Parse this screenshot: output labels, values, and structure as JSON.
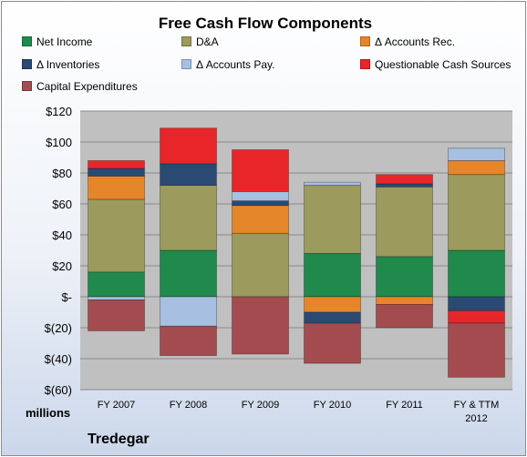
{
  "chart_data": {
    "type": "bar",
    "title": "Free Cash Flow Components",
    "categories": [
      "FY 2007",
      "FY 2008",
      "FY 2009",
      "FY 2010",
      "FY 2011",
      "FY & TTM 2012"
    ],
    "series": [
      {
        "name": "Net Income",
        "color": "#1f8a4c",
        "values": [
          16,
          30,
          0,
          28,
          26,
          30
        ]
      },
      {
        "name": "D&A",
        "color": "#9c9a5c",
        "values": [
          47,
          42,
          41,
          44,
          45,
          49
        ]
      },
      {
        "name": "Δ Accounts Rec.",
        "color": "#e6862a",
        "values": [
          15,
          0,
          18,
          -10,
          -5,
          9
        ]
      },
      {
        "name": "Δ Inventories",
        "color": "#2a4a74",
        "values": [
          5,
          14,
          3,
          -7,
          2,
          -9
        ]
      },
      {
        "name": "Δ Accounts Pay.",
        "color": "#a7bfe0",
        "values": [
          -2,
          -19,
          6,
          2,
          0,
          8
        ]
      },
      {
        "name": "Questionable Cash Sources",
        "color": "#e8262a",
        "values": [
          5,
          23,
          27,
          0,
          6,
          -8
        ]
      },
      {
        "name": "Capital Expenditures",
        "color": "#a34b4e",
        "values": [
          -20,
          -19,
          -37,
          -26,
          -15,
          -35
        ]
      }
    ],
    "ylim": [
      -60,
      120
    ],
    "yticks": [
      -60,
      -40,
      -20,
      0,
      20,
      40,
      60,
      80,
      100,
      120
    ],
    "ytick_labels": [
      "$(60)",
      "$(40)",
      "$(20)",
      "$-",
      "$20",
      "$40",
      "$60",
      "$80",
      "$100",
      "$120"
    ],
    "xtick_labels": [
      [
        "FY 2007"
      ],
      [
        "FY 2008"
      ],
      [
        "FY 2009"
      ],
      [
        "FY 2010"
      ],
      [
        "FY 2011"
      ],
      [
        "FY & TTM",
        "2012"
      ]
    ],
    "units_label": "millions",
    "grid": true,
    "legend_position": "top"
  },
  "footer": {
    "company": "Tredegar"
  },
  "colors": {
    "plot_background": "#c0c0c0",
    "gridline": "#8a8a8a"
  }
}
